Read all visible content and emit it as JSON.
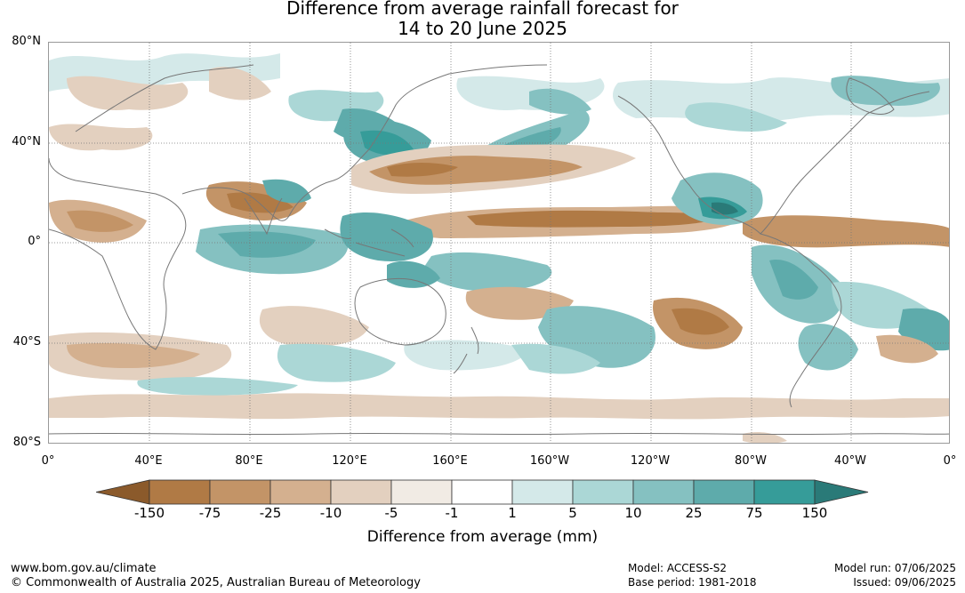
{
  "title": {
    "line1": "Difference from average rainfall forecast for",
    "line2": "14 to 20 June 2025"
  },
  "map": {
    "lat_labels": [
      "80°N",
      "40°N",
      "0°",
      "40°S",
      "80°S"
    ],
    "lon_labels": [
      "0°",
      "40°E",
      "80°E",
      "120°E",
      "160°E",
      "160°W",
      "120°W",
      "80°W",
      "40°W",
      "0°"
    ]
  },
  "legend": {
    "title": "Difference from average (mm)",
    "labels": [
      "-150",
      "-75",
      "-25",
      "-10",
      "-5",
      "-1",
      "1",
      "5",
      "10",
      "25",
      "75",
      "150"
    ],
    "colors": [
      "#8b5a2b",
      "#b07a45",
      "#c39467",
      "#d4b08f",
      "#e3d0bf",
      "#f1ebe4",
      "#ffffff",
      "#d4e9e9",
      "#abd7d6",
      "#85c1c1",
      "#5eabab",
      "#369c99",
      "#2a7a78"
    ]
  },
  "footer": {
    "website": "www.bom.gov.au/climate",
    "copyright": "© Commonwealth of Australia 2025, Australian Bureau of Meteorology",
    "model": "Model: ACCESS-S2",
    "base_period": "Base period: 1981-2018",
    "model_run": "Model run: 07/06/2025",
    "issued": "Issued: 09/06/2025"
  }
}
